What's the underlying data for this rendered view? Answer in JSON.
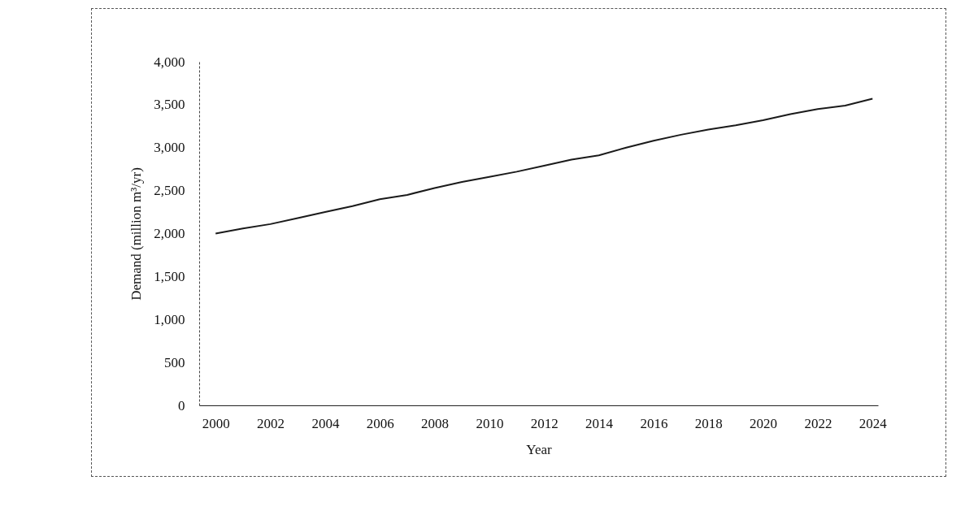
{
  "chart_data": {
    "type": "line",
    "xlabel": "Year",
    "ylabel": "Demand (million m³/yr)",
    "x": [
      2000,
      2001,
      2002,
      2003,
      2004,
      2005,
      2006,
      2007,
      2008,
      2009,
      2010,
      2011,
      2012,
      2013,
      2014,
      2015,
      2016,
      2017,
      2018,
      2019,
      2020,
      2021,
      2022,
      2023,
      2024
    ],
    "series": [
      {
        "color": "#1a1a1a",
        "values": [
          2000,
          2060,
          2110,
          2180,
          2250,
          2320,
          2400,
          2450,
          2530,
          2600,
          2660,
          2720,
          2790,
          2860,
          2910,
          3000,
          3080,
          3150,
          3210,
          3260,
          3320,
          3390,
          3450,
          3490,
          3570
        ]
      }
    ],
    "xlim": [
      1999.4,
      2024.2
    ],
    "xticks": [
      2000,
      2002,
      2004,
      2006,
      2008,
      2010,
      2012,
      2014,
      2016,
      2018,
      2020,
      2022,
      2024
    ],
    "ylim": [
      0,
      4000
    ],
    "yticks": [
      0,
      500,
      {
        "value": 1000,
        "label": "1,000"
      },
      {
        "value": 1500,
        "label": "1,500"
      },
      {
        "value": 2000,
        "label": "2,000"
      },
      {
        "value": 2500,
        "label": "2,500"
      },
      {
        "value": 3000,
        "label": "3,000"
      },
      {
        "value": 3500,
        "label": "3,500"
      },
      {
        "value": 4000,
        "label": "4,000"
      }
    ],
    "grid": false,
    "marker": "none",
    "line_style": "solid"
  }
}
